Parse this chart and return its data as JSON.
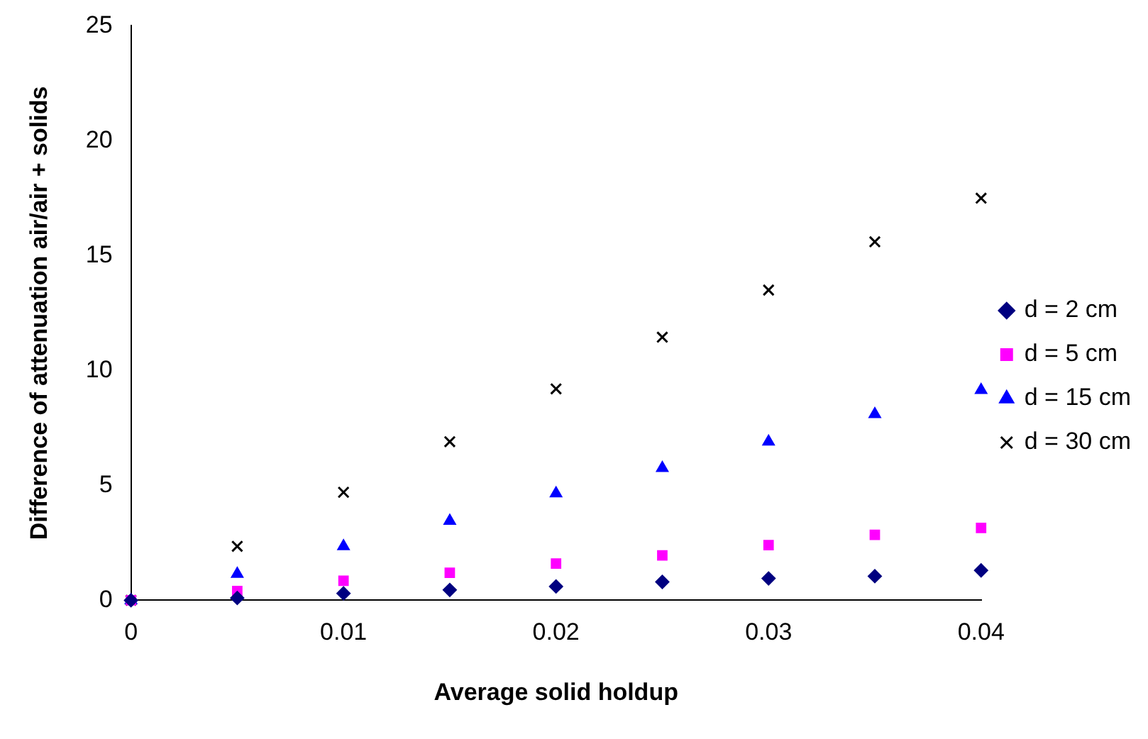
{
  "chart_data": {
    "type": "scatter",
    "xlabel": "Average solid holdup",
    "ylabel": "Difference of attenuation air/air + solids",
    "x": [
      0,
      0.005,
      0.01,
      0.015,
      0.02,
      0.025,
      0.03,
      0.035,
      0.04
    ],
    "series": [
      {
        "name": "d = 2 cm",
        "color": "#000080",
        "marker": "diamond",
        "values": [
          0,
          0.1,
          0.3,
          0.45,
          0.6,
          0.8,
          0.95,
          1.05,
          1.3
        ]
      },
      {
        "name": "d = 5 cm",
        "color": "#ff00ff",
        "marker": "square",
        "values": [
          0,
          0.4,
          0.85,
          1.2,
          1.6,
          1.95,
          2.4,
          2.85,
          3.15
        ]
      },
      {
        "name": "d = 15 cm",
        "color": "#0000ff",
        "marker": "triangle",
        "values": [
          0,
          1.15,
          2.35,
          3.45,
          4.65,
          5.75,
          6.9,
          8.1,
          9.15
        ]
      },
      {
        "name": "d = 30 cm",
        "color": "#000000",
        "marker": "cross",
        "values": [
          0,
          2.35,
          4.7,
          6.9,
          9.2,
          11.45,
          13.5,
          15.6,
          17.5
        ]
      }
    ],
    "xlim": [
      0,
      0.04
    ],
    "xticks": [
      0,
      0.01,
      0.02,
      0.03,
      0.04
    ],
    "ylim": [
      0,
      25
    ],
    "yticks": [
      0,
      5,
      10,
      15,
      20,
      25
    ],
    "grid": false,
    "legend": "right"
  }
}
